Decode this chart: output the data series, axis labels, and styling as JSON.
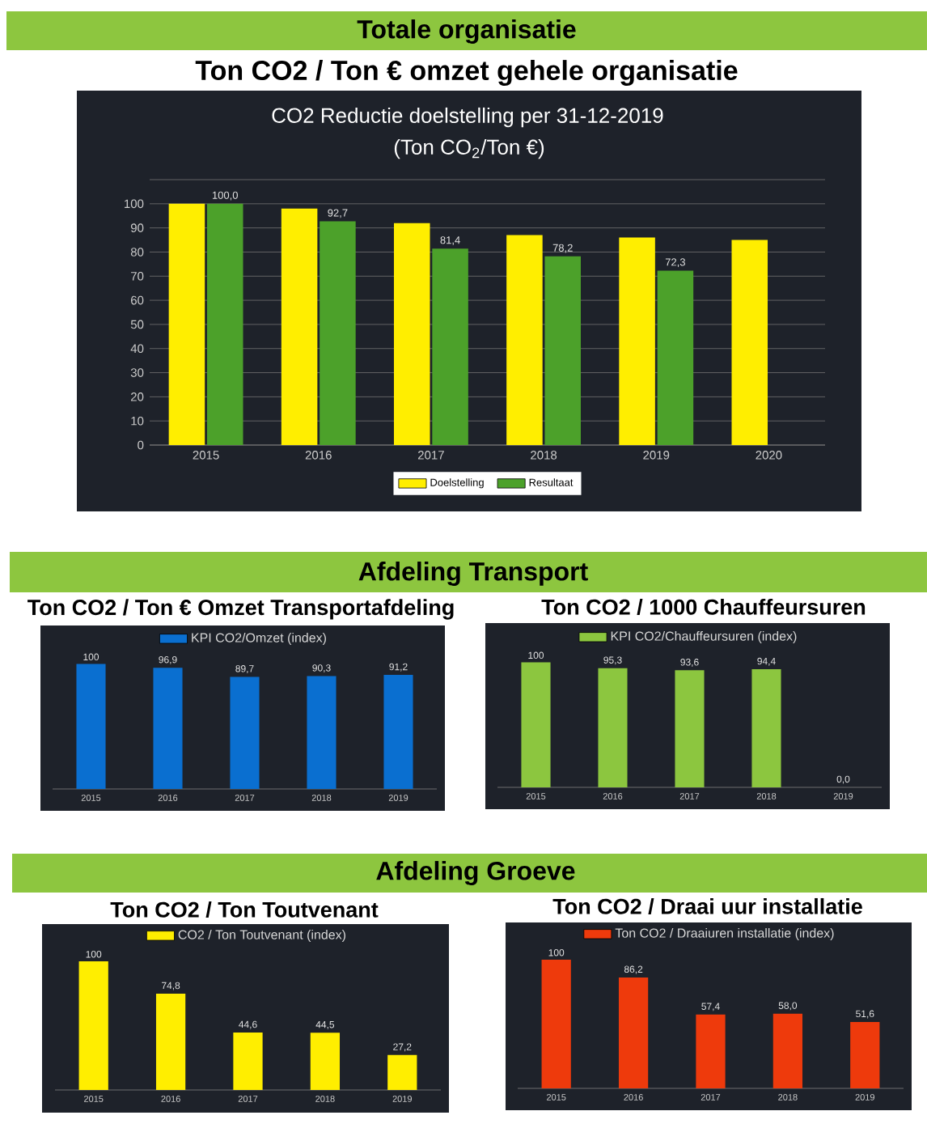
{
  "chart_data": [
    {
      "type": "bar",
      "title": "CO2 Reductie doelstelling per 31-12-2019",
      "subtitle": "(Ton CO$_{2}$/Ton €)",
      "annotations": [
        "Totale organisatie",
        "Ton CO2 / Ton € omzet gehele organisatie"
      ],
      "categories": [
        "2015",
        "2016",
        "2017",
        "2018",
        "2019",
        "2020"
      ],
      "series": [
        {
          "name": "Doelstelling",
          "color": "#ffee00",
          "values": [
            100,
            98,
            92,
            87,
            86,
            85
          ]
        },
        {
          "name": "Resultaat",
          "color": "#4ca12a",
          "values": [
            100.0,
            92.7,
            81.4,
            78.2,
            72.3,
            null
          ],
          "value_labels": [
            "100,0",
            "92,7",
            "81,4",
            "78,2",
            "72,3",
            null
          ]
        }
      ],
      "ylim": [
        0,
        110
      ],
      "yticks": [
        0,
        10,
        20,
        30,
        40,
        50,
        60,
        70,
        80,
        90,
        100,
        {
          "value": 110,
          "label": null
        }
      ],
      "grid": "y",
      "legend": "bottom"
    },
    {
      "type": "bar",
      "title": "Ton CO2 / Ton € Omzet Transportafdeling",
      "annotations": [
        "Afdeling Transport"
      ],
      "categories": [
        "2015",
        "2016",
        "2017",
        "2018",
        "2019"
      ],
      "series": [
        {
          "name": "KPI CO2/Omzet (index)",
          "color": "#0a6fd0",
          "values": [
            100,
            96.9,
            89.7,
            90.3,
            91.2
          ],
          "value_labels": [
            "100",
            "96,9",
            "89,7",
            "90,3",
            "91,2"
          ]
        }
      ],
      "tick_labels": "x",
      "legend": "top"
    },
    {
      "type": "bar",
      "title": "Ton CO2 / 1000 Chauffeursuren",
      "categories": [
        "2015",
        "2016",
        "2017",
        "2018",
        "2019"
      ],
      "series": [
        {
          "name": "KPI CO2/Chauffeursuren (index)",
          "color": "#8cc63f",
          "values": [
            100,
            95.3,
            93.6,
            94.4,
            0.0
          ],
          "value_labels": [
            "100",
            "95,3",
            "93,6",
            "94,4",
            "0,0"
          ]
        }
      ],
      "tick_labels": "x",
      "legend": "top"
    },
    {
      "type": "bar",
      "title": "Ton CO2 / Ton Toutvenant",
      "annotations": [
        "Afdeling Groeve"
      ],
      "categories": [
        "2015",
        "2016",
        "2017",
        "2018",
        "2019"
      ],
      "series": [
        {
          "name": "CO2 / Ton Toutvenant (index)",
          "color": "#ffee00",
          "values": [
            100,
            74.8,
            44.6,
            44.5,
            27.2
          ],
          "value_labels": [
            "100",
            "74,8",
            "44,6",
            "44,5",
            "27,2"
          ]
        }
      ],
      "tick_labels": "x",
      "legend": "top"
    },
    {
      "type": "bar",
      "title": "Ton CO2 / Draai uur installatie",
      "categories": [
        "2015",
        "2016",
        "2017",
        "2018",
        "2019"
      ],
      "series": [
        {
          "name": "Ton CO2 / Draaiuren installatie (index)",
          "color": "#ee3a0c",
          "values": [
            100,
            86.2,
            57.4,
            58.0,
            51.6
          ],
          "value_labels": [
            "100",
            "86,2",
            "57,4",
            "58,0",
            "51,6"
          ]
        }
      ],
      "tick_labels": "x",
      "legend": "top"
    }
  ]
}
